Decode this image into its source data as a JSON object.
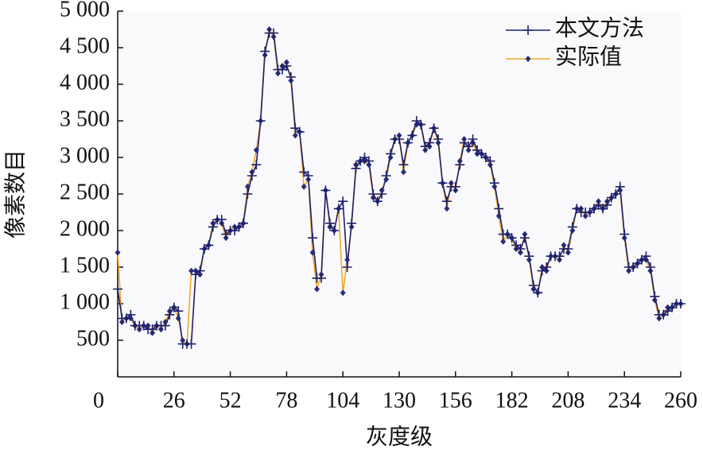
{
  "chart_data": {
    "type": "line",
    "x_label": "灰度级",
    "y_label": "像素数目",
    "x": [
      0,
      2,
      4,
      6,
      8,
      10,
      12,
      14,
      16,
      18,
      20,
      22,
      24,
      26,
      28,
      30,
      32,
      34,
      36,
      38,
      40,
      42,
      44,
      46,
      48,
      50,
      52,
      54,
      56,
      58,
      60,
      62,
      64,
      66,
      68,
      70,
      72,
      74,
      76,
      78,
      80,
      82,
      84,
      86,
      88,
      90,
      92,
      94,
      96,
      98,
      100,
      102,
      104,
      106,
      108,
      110,
      112,
      114,
      116,
      118,
      120,
      122,
      124,
      126,
      128,
      130,
      132,
      134,
      136,
      138,
      140,
      142,
      144,
      146,
      148,
      150,
      152,
      154,
      156,
      158,
      160,
      162,
      164,
      166,
      168,
      170,
      172,
      174,
      176,
      178,
      180,
      182,
      184,
      186,
      188,
      190,
      192,
      194,
      196,
      198,
      200,
      202,
      204,
      206,
      208,
      210,
      212,
      214,
      216,
      218,
      220,
      222,
      224,
      226,
      228,
      230,
      232,
      234,
      236,
      238,
      240,
      242,
      244,
      246,
      248,
      250,
      252,
      254,
      256,
      258,
      260
    ],
    "series": [
      {
        "name": "本文方法",
        "color": "#1c1f6b",
        "marker": "plus",
        "values": [
          1200,
          800,
          800,
          850,
          700,
          700,
          700,
          650,
          650,
          700,
          700,
          700,
          850,
          950,
          900,
          450,
          450,
          450,
          1400,
          1450,
          1750,
          1800,
          2050,
          2150,
          2150,
          1950,
          2000,
          2000,
          2050,
          2100,
          2500,
          2750,
          2900,
          3500,
          4450,
          4700,
          4700,
          4200,
          4200,
          4250,
          4100,
          3400,
          3350,
          2800,
          2750,
          1900,
          1350,
          1350,
          2550,
          2100,
          2000,
          2300,
          2400,
          1500,
          2100,
          2850,
          2950,
          3000,
          2950,
          2500,
          2400,
          2500,
          2750,
          3050,
          3250,
          3250,
          2900,
          3200,
          3300,
          3500,
          3450,
          3150,
          3200,
          3400,
          3250,
          2650,
          2400,
          2600,
          2600,
          2900,
          3200,
          3150,
          3250,
          3100,
          3050,
          3000,
          2950,
          2650,
          2300,
          1950,
          1950,
          1900,
          1800,
          1750,
          1900,
          1650,
          1250,
          1150,
          1450,
          1500,
          1650,
          1650,
          1650,
          1750,
          1750,
          2050,
          2300,
          2250,
          2250,
          2250,
          2300,
          2350,
          2300,
          2350,
          2450,
          2500,
          2600,
          1950,
          1500,
          1500,
          1550,
          1600,
          1650,
          1500,
          1100,
          850,
          850,
          900,
          950,
          1000,
          1000
        ]
      },
      {
        "name": "实际值",
        "color": "#f0a82a",
        "marker": "diamond",
        "marker_color": "#2a2f7a",
        "values": [
          1700,
          750,
          800,
          800,
          700,
          650,
          700,
          700,
          600,
          700,
          650,
          750,
          900,
          950,
          800,
          500,
          450,
          1450,
          1450,
          1400,
          1750,
          1800,
          2100,
          2150,
          2100,
          1900,
          2000,
          2050,
          2050,
          2100,
          2600,
          2800,
          3100,
          3500,
          4400,
          4750,
          4650,
          4150,
          4250,
          4300,
          4050,
          3300,
          3350,
          2600,
          2700,
          1700,
          1200,
          1400,
          2550,
          2050,
          2000,
          2300,
          1150,
          1600,
          2050,
          2900,
          2950,
          2950,
          2900,
          2450,
          2400,
          2550,
          2700,
          3000,
          3250,
          3300,
          2800,
          3200,
          3300,
          3450,
          3450,
          3100,
          3150,
          3400,
          3200,
          2650,
          2300,
          2650,
          2550,
          2950,
          3250,
          3100,
          3200,
          3050,
          3050,
          3000,
          2900,
          2600,
          2200,
          1850,
          1950,
          1900,
          1750,
          1700,
          1950,
          1600,
          1200,
          1150,
          1500,
          1450,
          1650,
          1650,
          1600,
          1800,
          1700,
          2000,
          2300,
          2300,
          2200,
          2250,
          2300,
          2400,
          2300,
          2400,
          2450,
          2500,
          2550,
          1900,
          1450,
          1500,
          1550,
          1600,
          1600,
          1450,
          1050,
          800,
          850,
          950,
          950,
          1000,
          1000
        ]
      }
    ],
    "xlim": [
      0,
      260
    ],
    "xticks": [
      0,
      26,
      52,
      78,
      104,
      130,
      156,
      182,
      208,
      234,
      260
    ],
    "ylim": [
      0,
      5000
    ],
    "yticks": [
      500,
      {
        "value": 1000,
        "label": "1 000"
      },
      {
        "value": 1500,
        "label": "1 500"
      },
      {
        "value": 2000,
        "label": "2 000"
      },
      {
        "value": 2500,
        "label": "2 500"
      },
      {
        "value": 3000,
        "label": "3 000"
      },
      {
        "value": 3500,
        "label": "3 500"
      },
      {
        "value": 4000,
        "label": "4 000"
      },
      {
        "value": 4500,
        "label": "4 500"
      },
      {
        "value": 5000,
        "label": "5 000"
      }
    ],
    "legend": "upper-right",
    "grid": false
  }
}
